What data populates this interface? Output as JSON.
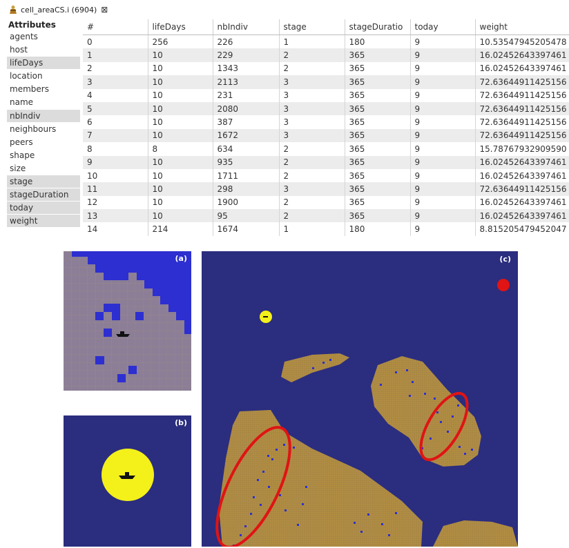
{
  "window": {
    "tab_title": "cell_areaCS.i (6904)",
    "close_glyph": "⊠"
  },
  "attributes": {
    "header": "Attributes",
    "items": [
      {
        "label": "agents",
        "selected": false
      },
      {
        "label": "host",
        "selected": false
      },
      {
        "label": "lifeDays",
        "selected": true
      },
      {
        "label": "location",
        "selected": false
      },
      {
        "label": "members",
        "selected": false
      },
      {
        "label": "name",
        "selected": false
      },
      {
        "label": "nbIndiv",
        "selected": true
      },
      {
        "label": "neighbours",
        "selected": false
      },
      {
        "label": "peers",
        "selected": false
      },
      {
        "label": "shape",
        "selected": false
      },
      {
        "label": "size",
        "selected": false
      },
      {
        "label": "stage",
        "selected": true
      },
      {
        "label": "stageDuration",
        "selected": true
      },
      {
        "label": "today",
        "selected": true
      },
      {
        "label": "weight",
        "selected": true
      }
    ]
  },
  "table": {
    "columns": [
      "#",
      "lifeDays",
      "nbIndiv",
      "stage",
      "stageDuratio",
      "today",
      "weight"
    ],
    "rows": [
      [
        "0",
        "256",
        "226",
        "1",
        "180",
        "9",
        "10.53547945205478"
      ],
      [
        "1",
        "10",
        "229",
        "2",
        "365",
        "9",
        "16.02452643397461"
      ],
      [
        "2",
        "10",
        "1343",
        "2",
        "365",
        "9",
        "16.02452643397461"
      ],
      [
        "3",
        "10",
        "2113",
        "3",
        "365",
        "9",
        "72.63644911425156"
      ],
      [
        "4",
        "10",
        "231",
        "3",
        "365",
        "9",
        "72.63644911425156"
      ],
      [
        "5",
        "10",
        "2080",
        "3",
        "365",
        "9",
        "72.63644911425156"
      ],
      [
        "6",
        "10",
        "387",
        "3",
        "365",
        "9",
        "72.63644911425156"
      ],
      [
        "7",
        "10",
        "1672",
        "3",
        "365",
        "9",
        "72.63644911425156"
      ],
      [
        "8",
        "8",
        "634",
        "2",
        "365",
        "9",
        "15.78767932909590"
      ],
      [
        "9",
        "10",
        "935",
        "2",
        "365",
        "9",
        "16.02452643397461"
      ],
      [
        "10",
        "10",
        "1711",
        "2",
        "365",
        "9",
        "16.02452643397461"
      ],
      [
        "11",
        "10",
        "298",
        "3",
        "365",
        "9",
        "72.63644911425156"
      ],
      [
        "12",
        "10",
        "1900",
        "2",
        "365",
        "9",
        "16.02452643397461"
      ],
      [
        "13",
        "10",
        "95",
        "2",
        "365",
        "9",
        "16.02452643397461"
      ],
      [
        "14",
        "214",
        "1674",
        "1",
        "180",
        "9",
        "8.815205479452047"
      ]
    ]
  },
  "panels": {
    "a_label": "(a)",
    "b_label": "(b)",
    "c_label": "(c)"
  },
  "colors": {
    "water": "#2b2d7e",
    "deep_blue": "#2d2fd0",
    "grid_cell": "#8b7e96",
    "land": "#a88745",
    "land_grid": "#c49a3c",
    "yellow": "#f4f01a",
    "red": "#e01414",
    "selected_row_bg": "#dcdcdc",
    "alt_row_bg": "#ececec"
  }
}
